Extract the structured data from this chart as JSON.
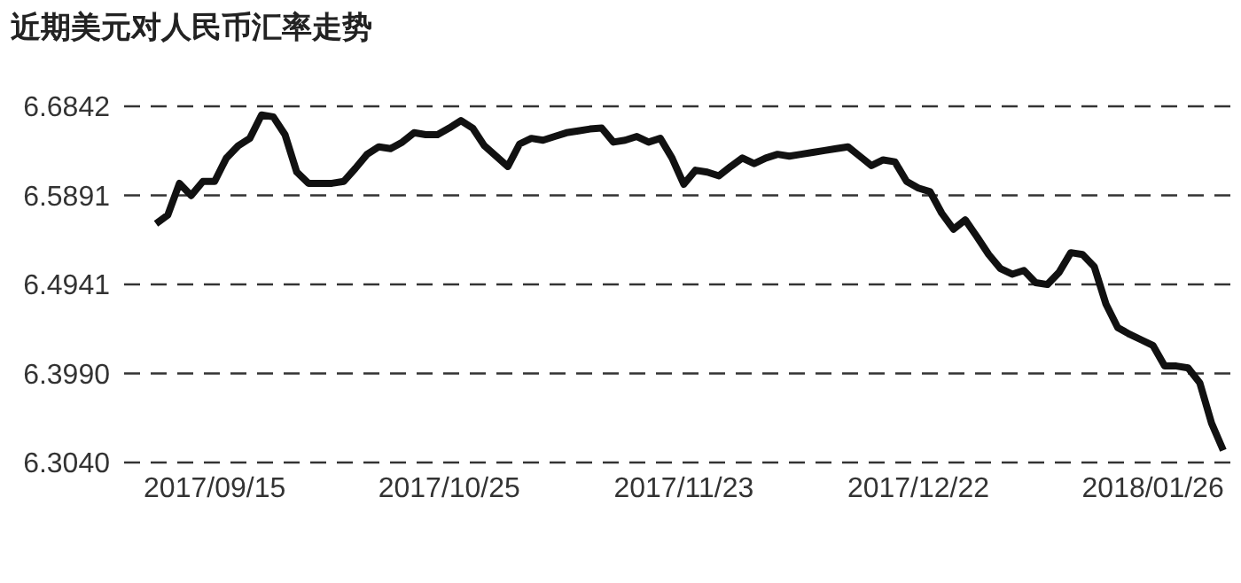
{
  "chart_data": {
    "type": "line",
    "title": "近期美元对人民币汇率走势",
    "categories": [
      null,
      null,
      null,
      null,
      null,
      "2017/09/15",
      null,
      null,
      null,
      null,
      null,
      null,
      null,
      null,
      null,
      null,
      null,
      null,
      null,
      null,
      null,
      null,
      null,
      null,
      null,
      "2017/10/25",
      null,
      null,
      null,
      null,
      null,
      null,
      null,
      null,
      null,
      null,
      null,
      null,
      null,
      null,
      null,
      null,
      null,
      null,
      null,
      "2017/11/23",
      null,
      null,
      null,
      null,
      null,
      null,
      null,
      null,
      null,
      null,
      null,
      null,
      null,
      null,
      null,
      null,
      null,
      null,
      null,
      "2017/12/22",
      null,
      null,
      null,
      null,
      null,
      null,
      null,
      null,
      null,
      null,
      null,
      null,
      null,
      null,
      null,
      null,
      null,
      null,
      null,
      "2018/01/26",
      null,
      null,
      null,
      null,
      null,
      null
    ],
    "series": [
      {
        "color": "#111111",
        "values": [
          6.559,
          6.568,
          6.602,
          6.589,
          6.604,
          6.604,
          6.629,
          6.642,
          6.65,
          6.675,
          6.673,
          6.654,
          6.614,
          6.602,
          6.602,
          6.602,
          6.604,
          6.618,
          6.633,
          6.641,
          6.639,
          6.646,
          6.656,
          6.654,
          6.654,
          6.661,
          6.669,
          6.661,
          6.642,
          6.631,
          6.62,
          6.644,
          6.65,
          6.648,
          6.652,
          6.656,
          6.658,
          6.66,
          6.661,
          6.646,
          6.648,
          6.652,
          6.646,
          6.65,
          6.629,
          6.601,
          6.616,
          6.614,
          6.61,
          6.62,
          6.629,
          6.623,
          6.629,
          6.633,
          6.631,
          6.633,
          6.635,
          6.637,
          6.639,
          6.641,
          6.631,
          6.621,
          6.627,
          6.625,
          6.604,
          6.597,
          6.593,
          6.57,
          6.553,
          6.563,
          6.545,
          6.526,
          6.511,
          6.505,
          6.509,
          6.496,
          6.494,
          6.507,
          6.528,
          6.526,
          6.513,
          6.473,
          6.448,
          6.441,
          6.435,
          6.429,
          6.407,
          6.407,
          6.405,
          6.389,
          6.346,
          6.317
        ]
      }
    ],
    "ylim": [
      6.304,
      6.6842
    ],
    "yticks": [
      {
        "value": 6.304,
        "label": "6.3040"
      },
      {
        "value": 6.399,
        "label": "6.3990"
      },
      {
        "value": 6.4941,
        "label": "6.4941"
      },
      {
        "value": 6.5891,
        "label": "6.5891"
      },
      {
        "value": 6.6842,
        "label": "6.6842"
      }
    ],
    "grid": "y",
    "line_style": "solid",
    "marker": "none"
  }
}
